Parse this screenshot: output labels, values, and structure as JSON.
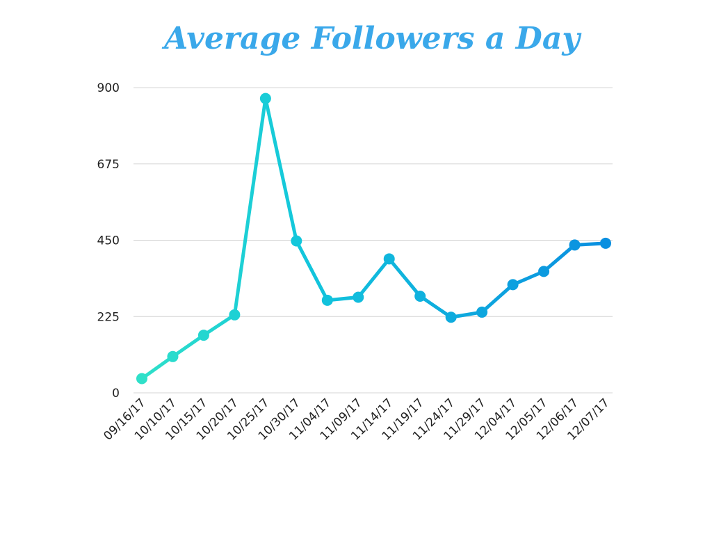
{
  "chart_data": {
    "type": "line",
    "title": "Average Followers a Day",
    "categories": [
      "09/16/17",
      "10/10/17",
      "10/15/17",
      "10/20/17",
      "10/25/17",
      "10/30/17",
      "11/04/17",
      "11/09/17",
      "11/14/17",
      "11/19/17",
      "11/24/17",
      "11/29/17",
      "12/04/17",
      "12/05/17",
      "12/06/17",
      "12/07/17"
    ],
    "series": [
      {
        "values": [
          42,
          107,
          170,
          230,
          868,
          448,
          273,
          282,
          395,
          285,
          223,
          238,
          319,
          358,
          436,
          441
        ]
      }
    ],
    "ylim": [
      0,
      900
    ],
    "yticks": [
      0,
      225,
      450,
      675,
      900
    ],
    "xlabel": "",
    "ylabel": "",
    "grid": "horizontal",
    "legend": "none",
    "colors": {
      "title": "#3aa8ea",
      "gradient_start": "#2fe0c9",
      "gradient_mid": "#12c6dc",
      "gradient_end": "#0a8fe0",
      "grid": "#d4d4d4",
      "tick_text": "#222222"
    }
  }
}
